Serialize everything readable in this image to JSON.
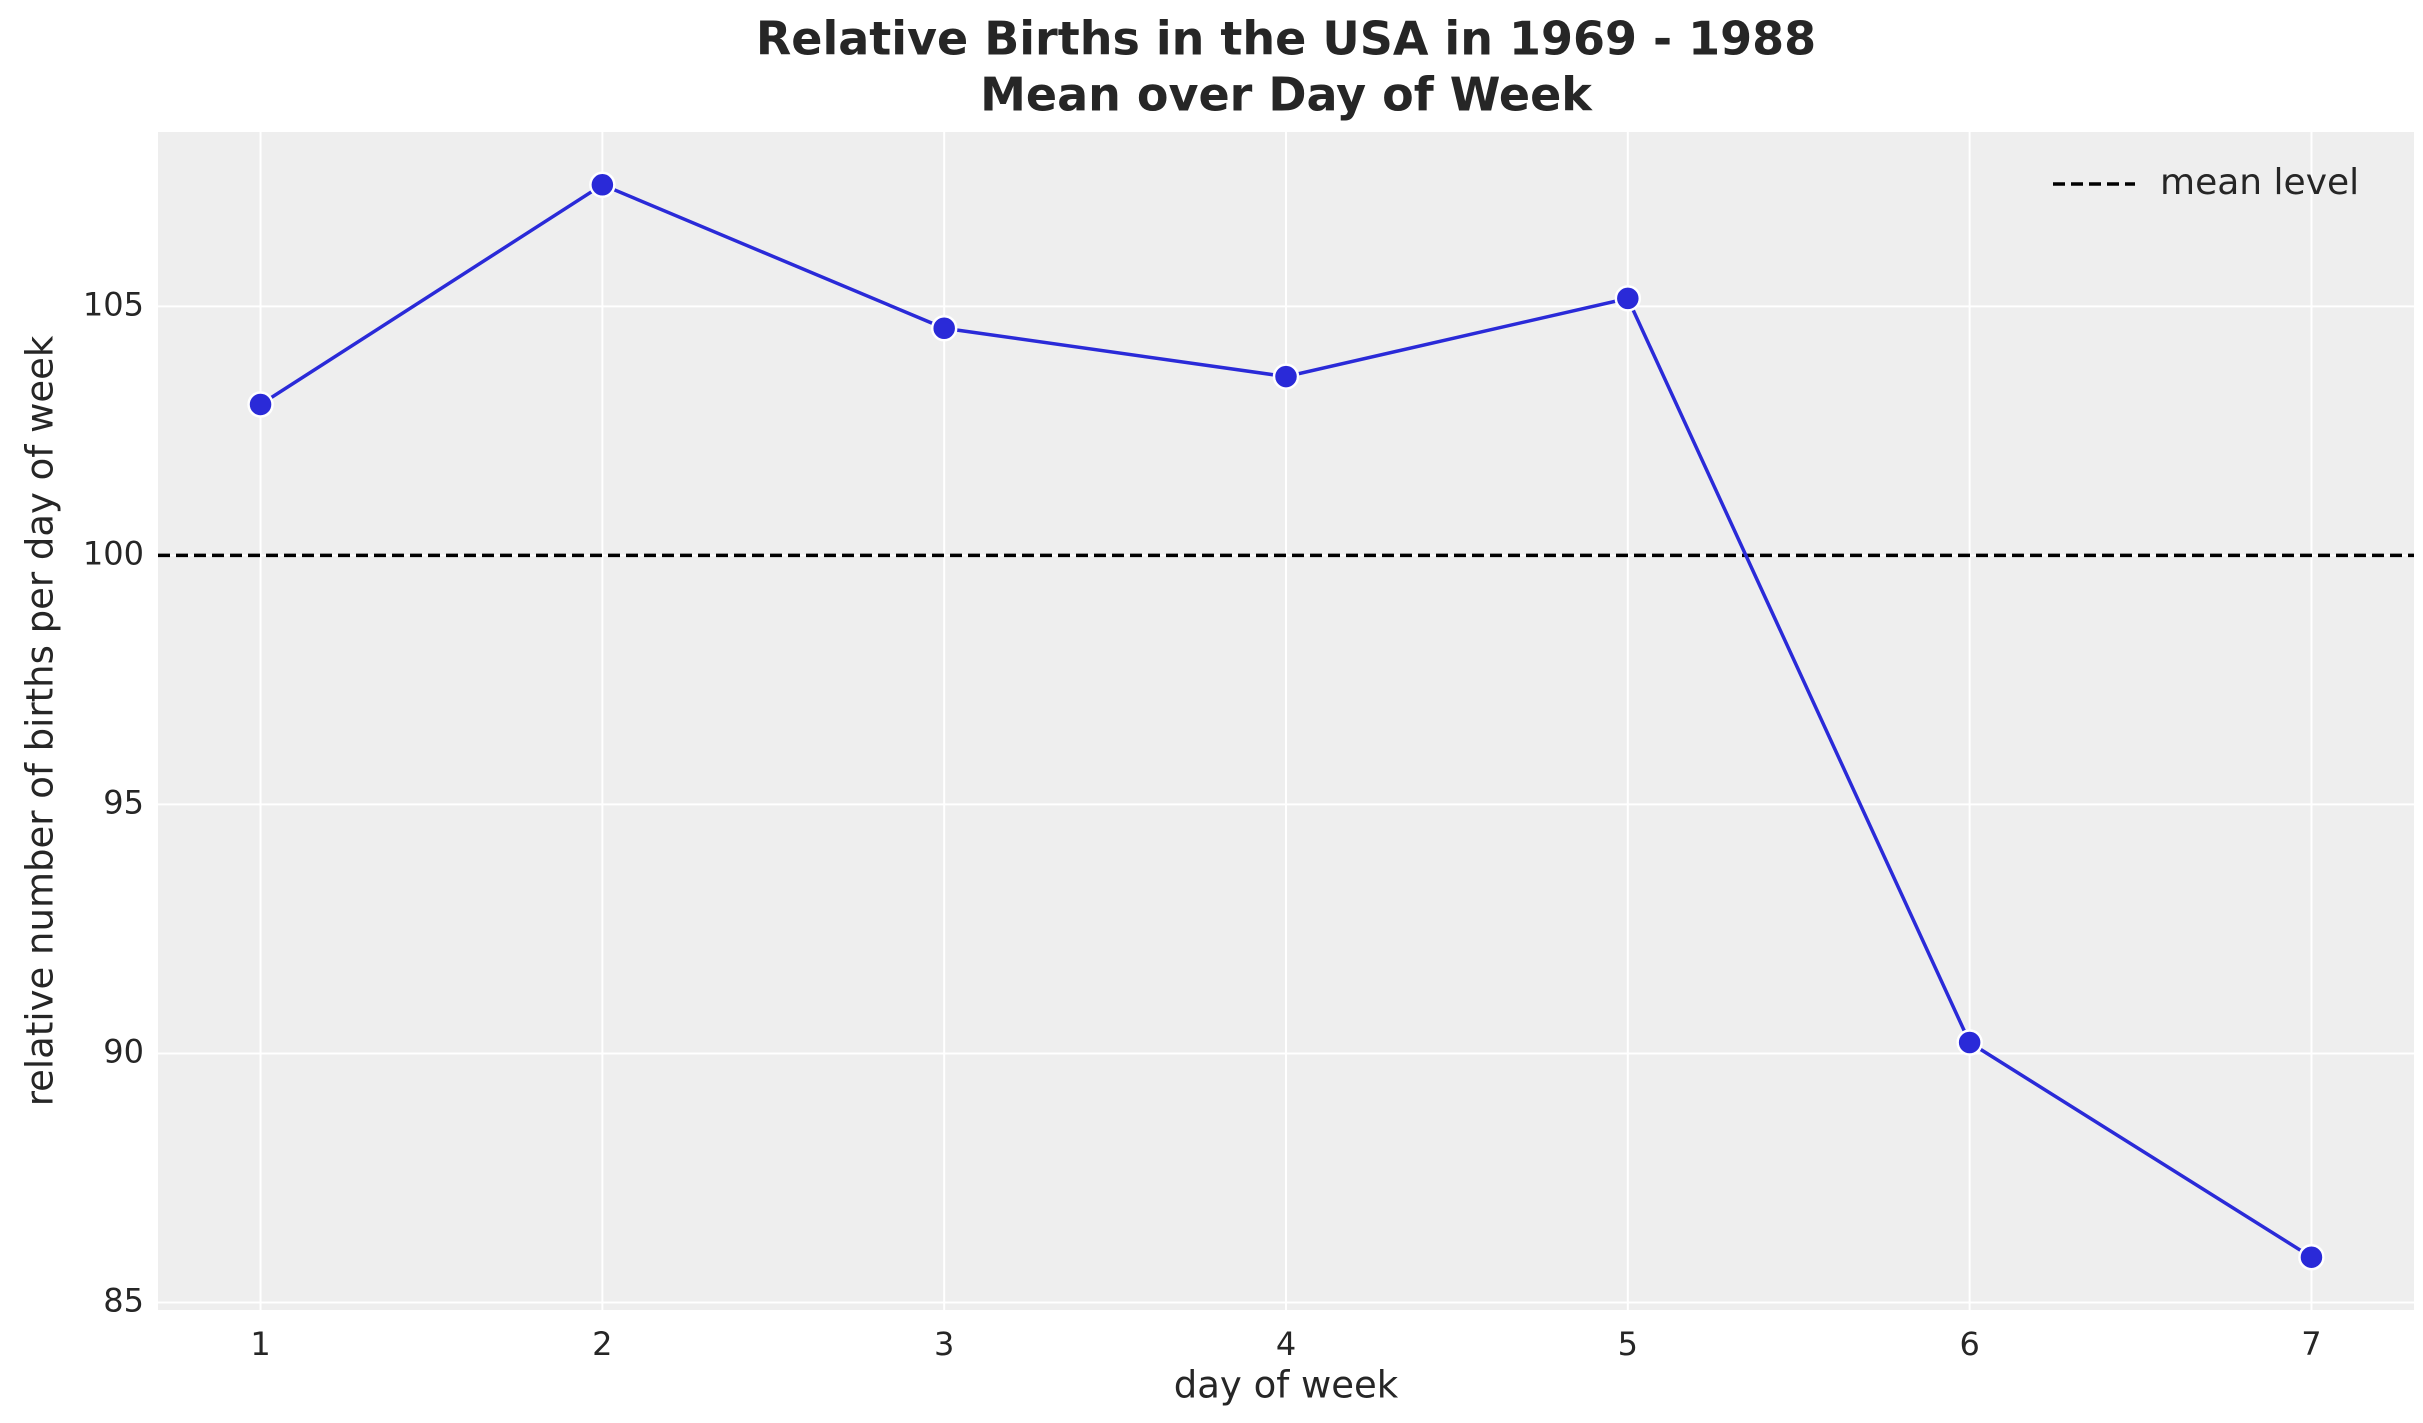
{
  "chart_data": {
    "type": "line",
    "title": "Relative Births in the USA in 1969 - 1988",
    "subtitle": "Mean over Day of Week",
    "x_label": "day of week",
    "y_label": "relative number of births per day of week",
    "x": [
      1,
      2,
      3,
      4,
      5,
      6,
      7
    ],
    "series": [
      {
        "color": "#2a2ad8",
        "values": [
          103.03,
          107.44,
          104.56,
          103.59,
          105.16,
          90.22,
          85.91
        ]
      }
    ],
    "hline": {
      "name": "mean level",
      "value": 100,
      "color": "#000000"
    },
    "xlim": [
      0.7,
      7.3
    ],
    "xticks": [
      1,
      2,
      3,
      4,
      5,
      6,
      7
    ],
    "ylim": [
      84.85,
      108.5
    ],
    "yticks": [
      85,
      90,
      95,
      100,
      105
    ],
    "grid": true,
    "legend": "upper right"
  }
}
